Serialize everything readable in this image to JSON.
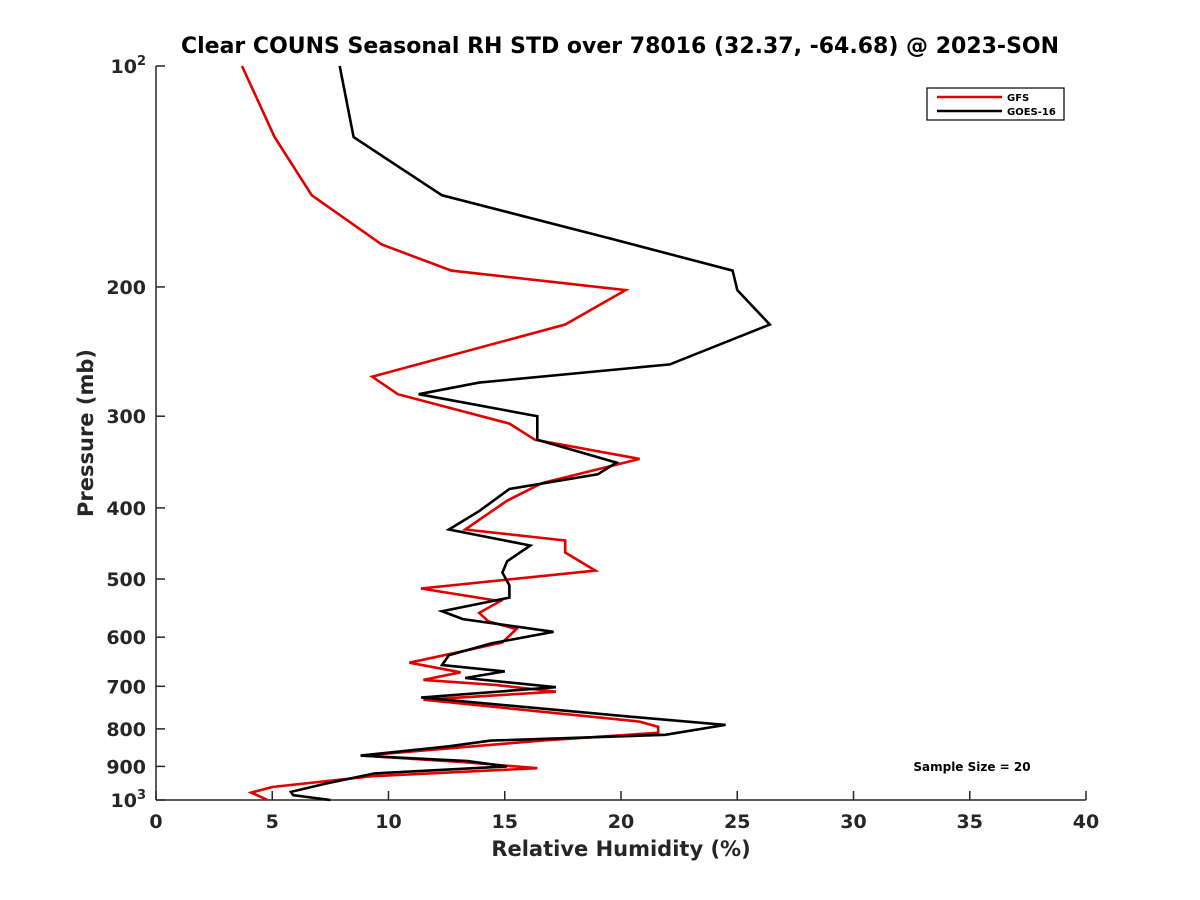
{
  "chart_data": {
    "type": "line",
    "title": "Clear COUNS Seasonal RH STD over 78016 (32.37, -64.68) @ 2023-SON",
    "xlabel": "Relative Humidity (%)",
    "ylabel": "Pressure (mb)",
    "xlim": [
      0,
      40
    ],
    "ylim": [
      100,
      1000
    ],
    "yscale": "log",
    "yreversed": true,
    "xticks": [
      "0",
      "5",
      "10",
      "15",
      "20",
      "25",
      "30",
      "35",
      "40"
    ],
    "yticks": [
      {
        "value": 100,
        "base": "10",
        "exp": "2"
      },
      {
        "value": 200,
        "label": "200"
      },
      {
        "value": 300,
        "label": "300"
      },
      {
        "value": 400,
        "label": "400"
      },
      {
        "value": 500,
        "label": "500"
      },
      {
        "value": 600,
        "label": "600"
      },
      {
        "value": 700,
        "label": "700"
      },
      {
        "value": 800,
        "label": "800"
      },
      {
        "value": 900,
        "label": "900"
      },
      {
        "value": 1000,
        "base": "10",
        "exp": "3"
      }
    ],
    "legend_position": "top-right",
    "annotation": "Sample Size = 20",
    "series": [
      {
        "name": "GFS",
        "color": "#e00000",
        "points": [
          [
            3.7,
            100
          ],
          [
            5.1,
            125
          ],
          [
            6.7,
            150
          ],
          [
            9.7,
            175
          ],
          [
            12.7,
            190
          ],
          [
            20.2,
            202
          ],
          [
            17.6,
            225
          ],
          [
            9.3,
            265
          ],
          [
            10.4,
            280
          ],
          [
            15.2,
            307
          ],
          [
            16.3,
            323
          ],
          [
            20.8,
            343
          ],
          [
            16.6,
            370
          ],
          [
            15.1,
            391
          ],
          [
            13.3,
            428
          ],
          [
            17.6,
            443
          ],
          [
            17.6,
            460
          ],
          [
            18.9,
            487
          ],
          [
            11.4,
            515
          ],
          [
            14.8,
            536
          ],
          [
            13.9,
            556
          ],
          [
            14.3,
            571
          ],
          [
            15.5,
            585
          ],
          [
            14.9,
            610
          ],
          [
            12.7,
            632
          ],
          [
            10.9,
            650
          ],
          [
            13.1,
            670
          ],
          [
            11.5,
            686
          ],
          [
            14.6,
            697
          ],
          [
            17.2,
            712
          ],
          [
            11.5,
            730
          ],
          [
            20.8,
            782
          ],
          [
            21.6,
            795
          ],
          [
            21.6,
            810
          ],
          [
            16.6,
            830
          ],
          [
            8.9,
            870
          ],
          [
            13.2,
            888
          ],
          [
            16.4,
            905
          ],
          [
            9.3,
            928
          ],
          [
            5.0,
            960
          ],
          [
            4.1,
            977
          ],
          [
            4.8,
            1000
          ]
        ]
      },
      {
        "name": "GOES-16",
        "color": "#000000",
        "points": [
          [
            7.9,
            100
          ],
          [
            8.5,
            125
          ],
          [
            12.3,
            150
          ],
          [
            19.6,
            172
          ],
          [
            24.8,
            190
          ],
          [
            25.0,
            202
          ],
          [
            26.4,
            225
          ],
          [
            22.1,
            255
          ],
          [
            13.9,
            270
          ],
          [
            11.3,
            280
          ],
          [
            16.4,
            300
          ],
          [
            16.4,
            323
          ],
          [
            19.8,
            347
          ],
          [
            19.0,
            360
          ],
          [
            15.2,
            377
          ],
          [
            13.9,
            404
          ],
          [
            12.6,
            428
          ],
          [
            16.1,
            450
          ],
          [
            15.1,
            473
          ],
          [
            14.9,
            490
          ],
          [
            15.2,
            510
          ],
          [
            15.2,
            530
          ],
          [
            12.3,
            553
          ],
          [
            13.2,
            567
          ],
          [
            17.1,
            590
          ],
          [
            14.4,
            612
          ],
          [
            12.6,
            635
          ],
          [
            12.3,
            655
          ],
          [
            15.0,
            668
          ],
          [
            13.3,
            682
          ],
          [
            17.2,
            702
          ],
          [
            11.4,
            725
          ],
          [
            20.4,
            770
          ],
          [
            24.5,
            790
          ],
          [
            21.9,
            815
          ],
          [
            14.4,
            830
          ],
          [
            12.6,
            845
          ],
          [
            8.8,
            870
          ],
          [
            13.4,
            885
          ],
          [
            15.1,
            900
          ],
          [
            9.4,
            920
          ],
          [
            7.3,
            950
          ],
          [
            5.8,
            975
          ],
          [
            5.9,
            985
          ],
          [
            7.5,
            1000
          ]
        ]
      }
    ]
  }
}
